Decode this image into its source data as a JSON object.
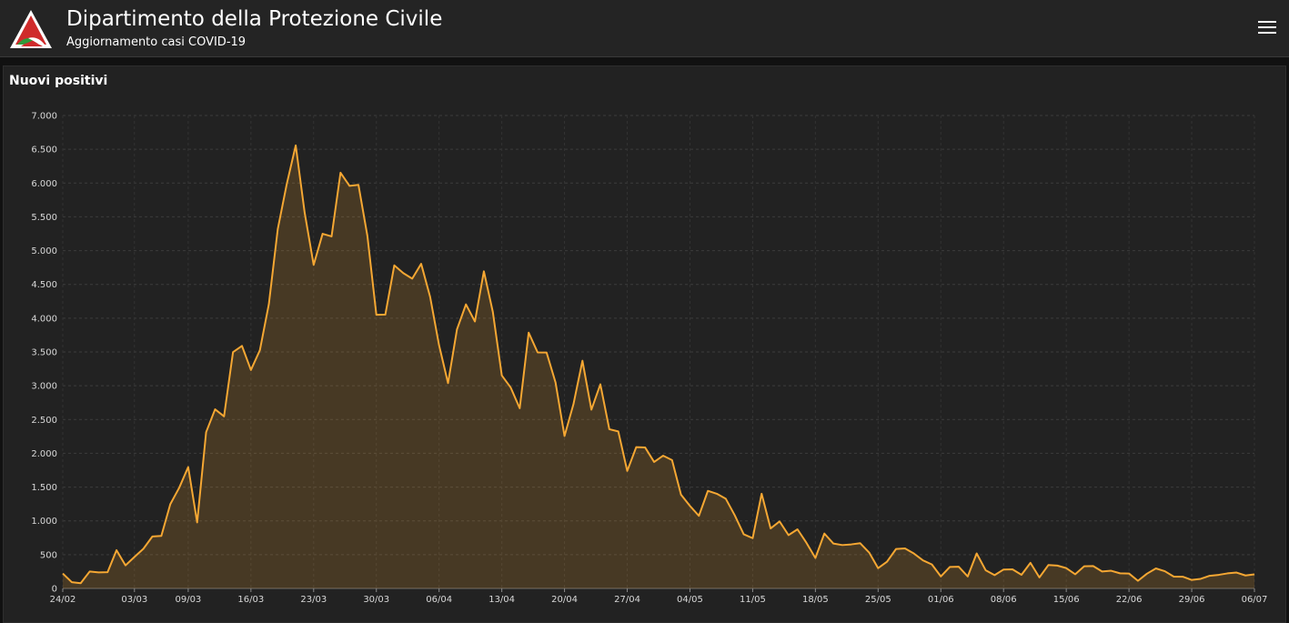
{
  "header": {
    "title": "Dipartimento della Protezione Civile",
    "subtitle": "Aggiornamento casi COVID-19",
    "logo_icon": "protezione-civile-logo",
    "menu_icon": "hamburger-menu-icon"
  },
  "panel": {
    "title": "Nuovi positivi"
  },
  "colors": {
    "line": "#f5a733",
    "area": "#f5a733",
    "header_bg": "#242424",
    "panel_bg": "#222222"
  },
  "chart_data": {
    "type": "area",
    "title": "Nuovi positivi",
    "xlabel": "",
    "ylabel": "",
    "ylim": [
      0,
      7000
    ],
    "grid": true,
    "y_ticks": [
      0,
      500,
      1000,
      1500,
      2000,
      2500,
      3000,
      3500,
      4000,
      4500,
      5000,
      5500,
      6000,
      6500,
      7000
    ],
    "y_tick_labels": [
      "0",
      "500",
      "1.000",
      "1.500",
      "2.000",
      "2.500",
      "3.000",
      "3.500",
      "4.000",
      "4.500",
      "5.000",
      "5.500",
      "6.000",
      "6.500",
      "7.000"
    ],
    "x_tick_labels": [
      "24/02",
      "03/03",
      "09/03",
      "16/03",
      "23/03",
      "30/03",
      "06/04",
      "13/04",
      "20/04",
      "27/04",
      "04/05",
      "11/05",
      "18/05",
      "25/05",
      "01/06",
      "08/06",
      "15/06",
      "22/06",
      "29/06",
      "06/07"
    ],
    "x_tick_dates": [
      "2020-02-24",
      "2020-03-03",
      "2020-03-09",
      "2020-03-16",
      "2020-03-23",
      "2020-03-30",
      "2020-04-06",
      "2020-04-13",
      "2020-04-20",
      "2020-04-27",
      "2020-05-04",
      "2020-05-11",
      "2020-05-18",
      "2020-05-25",
      "2020-06-01",
      "2020-06-08",
      "2020-06-15",
      "2020-06-22",
      "2020-06-29",
      "2020-07-06"
    ],
    "x_start": "2020-02-24",
    "x_end": "2020-07-06",
    "series": [
      {
        "values": [
          221,
          93,
          78,
          250,
          238,
          240,
          566,
          342,
          466,
          587,
          769,
          778,
          1247,
          1492,
          1797,
          977,
          2313,
          2651,
          2547,
          3497,
          3590,
          3233,
          3526,
          4207,
          5322,
          5986,
          6557,
          5560,
          4789,
          5249,
          5210,
          6153,
          5959,
          5974,
          5217,
          4050,
          4053,
          4782,
          4668,
          4585,
          4805,
          4316,
          3599,
          3039,
          3836,
          4204,
          3951,
          4694,
          4092,
          3153,
          2972,
          2667,
          3786,
          3493,
          3491,
          3047,
          2256,
          2729,
          3370,
          2646,
          3021,
          2357,
          2324,
          1739,
          2091,
          2086,
          1872,
          1965,
          1900,
          1389,
          1221,
          1075,
          1444,
          1401,
          1327,
          1083,
          802,
          744,
          1402,
          888,
          992,
          789,
          875,
          675,
          451,
          813,
          665,
          642,
          652,
          669,
          531,
          300,
          397,
          584,
          593,
          516,
          416,
          355,
          178,
          318,
          321,
          177,
          518,
          270,
          197,
          280,
          283,
          202,
          379,
          163,
          346,
          338,
          301,
          210,
          328,
          331,
          251,
          262,
          224,
          221,
          113,
          218,
          296,
          255,
          175,
          174,
          126,
          142,
          187,
          201,
          223,
          235,
          192,
          208
        ]
      }
    ]
  }
}
